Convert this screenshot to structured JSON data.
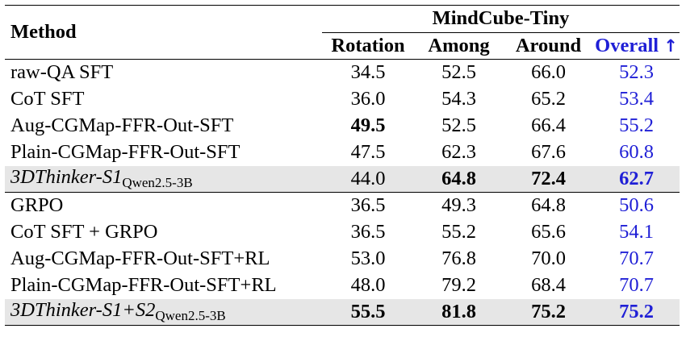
{
  "header": {
    "method_label": "Method",
    "benchmark_label": "MindCube-Tiny",
    "columns": [
      "Rotation",
      "Among",
      "Around",
      "Overall"
    ],
    "overall_arrow": "↑"
  },
  "rows": [
    {
      "method": "raw-QA SFT",
      "values": [
        "34.5",
        "52.5",
        "66.0",
        "52.3"
      ]
    },
    {
      "method": "CoT SFT",
      "values": [
        "36.0",
        "54.3",
        "65.2",
        "53.4"
      ]
    },
    {
      "method": "Aug-CGMap-FFR-Out-SFT",
      "values": [
        "49.5",
        "52.5",
        "66.4",
        "55.2"
      ]
    },
    {
      "method": "Plain-CGMap-FFR-Out-SFT",
      "values": [
        "47.5",
        "62.3",
        "67.6",
        "60.8"
      ]
    },
    {
      "method": "3DThinker-S1",
      "method_sub": "Qwen2.5-3B",
      "values": [
        "44.0",
        "64.8",
        "72.4",
        "62.7"
      ]
    },
    {
      "method": "GRPO",
      "values": [
        "36.5",
        "49.3",
        "64.8",
        "50.6"
      ]
    },
    {
      "method": "CoT SFT + GRPO",
      "values": [
        "36.5",
        "55.2",
        "65.6",
        "54.1"
      ]
    },
    {
      "method": "Aug-CGMap-FFR-Out-SFT+RL",
      "values": [
        "53.0",
        "76.8",
        "70.0",
        "70.7"
      ]
    },
    {
      "method": "Plain-CGMap-FFR-Out-SFT+RL",
      "values": [
        "48.0",
        "79.2",
        "68.4",
        "70.7"
      ]
    },
    {
      "method": "3DThinker-S1+S2",
      "method_sub": "Qwen2.5-3B",
      "values": [
        "55.5",
        "81.8",
        "75.2",
        "75.2"
      ]
    }
  ]
}
